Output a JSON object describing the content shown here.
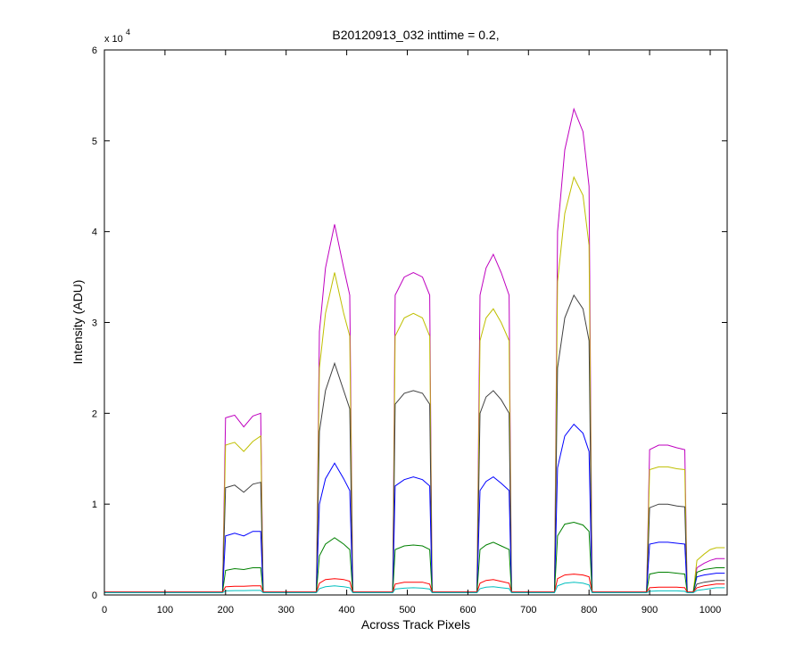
{
  "chart_data": {
    "type": "line",
    "title": "B20120913_032 inttime = 0.2,",
    "x_label": "Across Track Pixels",
    "y_label": "Intensity (ADU)",
    "y_exponent": {
      "base": "x 10",
      "power": "4"
    },
    "xlim": [
      0,
      1028
    ],
    "ylim": [
      0,
      60000
    ],
    "xticks": [
      0,
      100,
      200,
      300,
      400,
      500,
      600,
      700,
      800,
      900,
      1000
    ],
    "yticks": [
      {
        "value": 0,
        "label": "0"
      },
      {
        "value": 10000,
        "label": "1"
      },
      {
        "value": 20000,
        "label": "2"
      },
      {
        "value": 30000,
        "label": "3"
      },
      {
        "value": 40000,
        "label": "4"
      },
      {
        "value": 50000,
        "label": "5"
      },
      {
        "value": 60000,
        "label": "6"
      }
    ],
    "x": [
      0,
      195,
      200,
      215,
      230,
      245,
      258,
      262,
      350,
      355,
      365,
      380,
      395,
      405,
      410,
      476,
      480,
      495,
      510,
      525,
      537,
      541,
      615,
      620,
      630,
      642,
      655,
      668,
      672,
      743,
      748,
      760,
      775,
      790,
      800,
      805,
      895,
      900,
      915,
      930,
      945,
      958,
      962,
      972,
      978,
      990,
      1000,
      1010,
      1024
    ],
    "series": [
      {
        "color": "#bf00bf",
        "values": [
          300,
          300,
          19500,
          19800,
          18500,
          19700,
          20000,
          300,
          300,
          29000,
          36000,
          40800,
          36000,
          33000,
          300,
          300,
          33000,
          35000,
          35500,
          35000,
          33000,
          300,
          300,
          33000,
          36000,
          37500,
          35500,
          33000,
          300,
          300,
          40000,
          49000,
          53500,
          51000,
          45000,
          300,
          300,
          16000,
          16500,
          16500,
          16200,
          16000,
          300,
          300,
          3000,
          3500,
          3800,
          4000,
          4000
        ]
      },
      {
        "color": "#bfbf00",
        "values": [
          300,
          300,
          16500,
          16800,
          15800,
          16900,
          17500,
          300,
          300,
          25000,
          31000,
          35500,
          31000,
          28500,
          300,
          300,
          28500,
          30500,
          31000,
          30500,
          28500,
          300,
          300,
          28000,
          30500,
          31500,
          30000,
          28000,
          300,
          300,
          34500,
          42000,
          46000,
          44000,
          38500,
          300,
          300,
          13800,
          14100,
          14100,
          13900,
          13800,
          300,
          300,
          3800,
          4500,
          5000,
          5200,
          5200
        ]
      },
      {
        "color": "#404040",
        "values": [
          300,
          300,
          11800,
          12100,
          11300,
          12200,
          12400,
          300,
          300,
          18000,
          22500,
          25500,
          22500,
          20500,
          300,
          300,
          21000,
          22200,
          22500,
          22200,
          21000,
          300,
          300,
          20000,
          21800,
          22500,
          21500,
          20000,
          300,
          300,
          25000,
          30500,
          33000,
          31500,
          28000,
          300,
          300,
          9600,
          10000,
          10000,
          9800,
          9700,
          300,
          300,
          1200,
          1400,
          1500,
          1600,
          1600
        ]
      },
      {
        "color": "#0000ff",
        "values": [
          300,
          300,
          6500,
          6800,
          6500,
          7000,
          7000,
          300,
          300,
          10000,
          12800,
          14500,
          12800,
          11500,
          300,
          300,
          12000,
          12700,
          13000,
          12700,
          12000,
          300,
          300,
          11500,
          12500,
          13000,
          12300,
          11500,
          300,
          300,
          14000,
          17500,
          18800,
          17800,
          15800,
          300,
          300,
          5600,
          5800,
          5800,
          5700,
          5600,
          300,
          300,
          2000,
          2200,
          2300,
          2400,
          2400
        ]
      },
      {
        "color": "#008000",
        "values": [
          300,
          300,
          2700,
          2900,
          2800,
          3000,
          3000,
          300,
          300,
          4300,
          5600,
          6300,
          5600,
          5000,
          300,
          300,
          5000,
          5400,
          5500,
          5400,
          5000,
          300,
          300,
          5000,
          5500,
          5800,
          5400,
          5000,
          300,
          300,
          6500,
          7800,
          8000,
          7700,
          7000,
          300,
          300,
          2300,
          2500,
          2500,
          2400,
          2300,
          300,
          300,
          2500,
          2800,
          2900,
          3000,
          3000
        ]
      },
      {
        "color": "#ff0000",
        "values": [
          300,
          300,
          900,
          950,
          950,
          1000,
          1000,
          300,
          300,
          1300,
          1700,
          1800,
          1700,
          1500,
          300,
          300,
          1200,
          1400,
          1400,
          1400,
          1200,
          300,
          300,
          1300,
          1600,
          1700,
          1500,
          1300,
          300,
          300,
          1800,
          2200,
          2300,
          2200,
          2000,
          300,
          300,
          800,
          850,
          850,
          850,
          800,
          300,
          300,
          800,
          1000,
          1100,
          1200,
          1200
        ]
      },
      {
        "color": "#00bfbf",
        "values": [
          250,
          250,
          450,
          480,
          480,
          500,
          500,
          250,
          250,
          700,
          900,
          1000,
          900,
          800,
          250,
          250,
          650,
          750,
          800,
          750,
          650,
          250,
          250,
          700,
          850,
          900,
          800,
          700,
          250,
          250,
          1000,
          1300,
          1400,
          1300,
          1100,
          250,
          250,
          400,
          450,
          450,
          450,
          400,
          250,
          250,
          500,
          600,
          700,
          800,
          800
        ]
      }
    ]
  }
}
